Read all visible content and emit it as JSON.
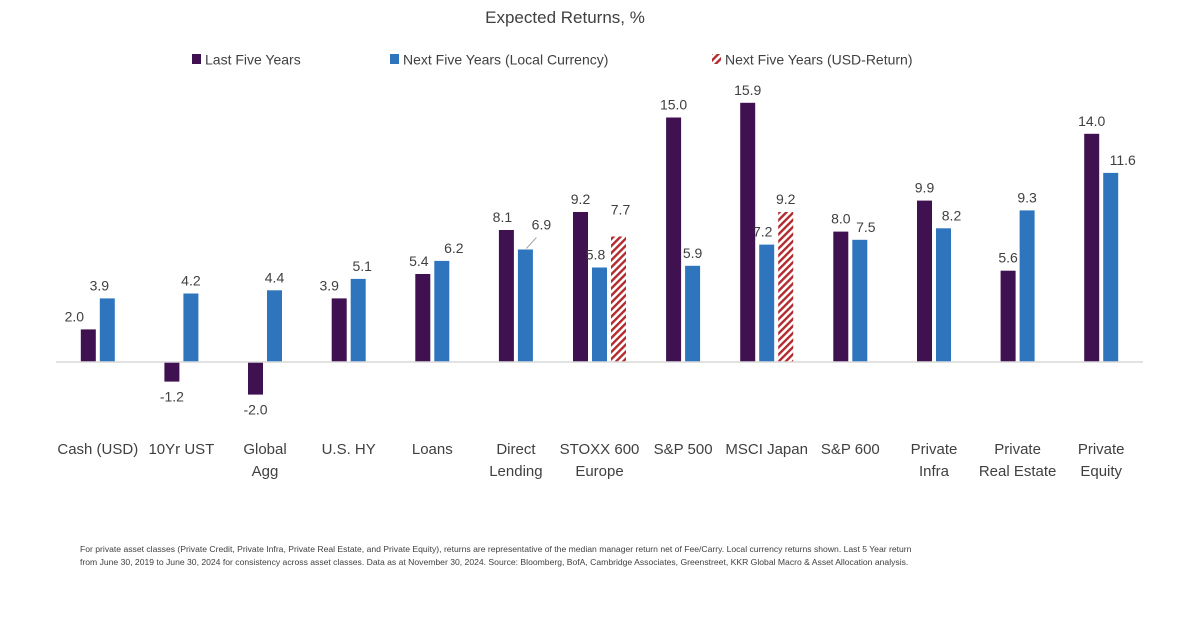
{
  "chart_data": {
    "type": "bar",
    "title": "Expected Returns, %",
    "xlabel": "",
    "ylabel": "",
    "ylim": [
      -2.0,
      16.0
    ],
    "grid": false,
    "legend_position": "top",
    "categories": [
      [
        "Cash (USD)"
      ],
      [
        "10Yr UST"
      ],
      [
        "Global",
        "Agg"
      ],
      [
        "U.S. HY"
      ],
      [
        "Loans"
      ],
      [
        "Direct",
        "Lending"
      ],
      [
        "STOXX 600",
        "Europe"
      ],
      [
        "S&P 500"
      ],
      [
        "MSCI Japan"
      ],
      [
        "S&P 600"
      ],
      [
        "Private",
        "Infra"
      ],
      [
        "Private",
        "Real Estate"
      ],
      [
        "Private",
        "Equity"
      ]
    ],
    "series": [
      {
        "name": "Last Five Years",
        "color": "#3F1151",
        "pattern": "solid",
        "values": [
          2.0,
          -1.2,
          -2.0,
          3.9,
          5.4,
          8.1,
          9.2,
          15.0,
          15.9,
          8.0,
          9.9,
          5.6,
          14.0
        ],
        "labels": [
          "2.0",
          "-1.2",
          "-2.0",
          "3.9",
          "5.4",
          "8.1",
          "9.2",
          "15.0",
          "15.9",
          "8.0",
          "9.9",
          "5.6",
          "14.0"
        ]
      },
      {
        "name": "Next Five Years (Local Currency)",
        "color": "#2E75BE",
        "pattern": "solid",
        "values": [
          3.9,
          4.2,
          4.4,
          5.1,
          6.2,
          6.9,
          5.8,
          5.9,
          7.2,
          7.5,
          8.2,
          9.3,
          11.6
        ],
        "labels": [
          "3.9",
          "4.2",
          "4.4",
          "5.1",
          "6.2",
          "6.9",
          "5.8",
          "5.9",
          "7.2",
          "7.5",
          "8.2",
          "9.3",
          "11.6"
        ]
      },
      {
        "name": "Next Five Years (USD-Return)",
        "color": "#B22A2E",
        "pattern": "diagonal-hatch",
        "values": [
          null,
          null,
          null,
          null,
          null,
          null,
          7.7,
          null,
          9.2,
          null,
          null,
          null,
          null
        ],
        "labels": [
          null,
          null,
          null,
          null,
          null,
          null,
          "7.7",
          null,
          "9.2",
          null,
          null,
          null,
          null
        ]
      }
    ]
  },
  "footnote": {
    "lines": [
      "For private asset classes (Private Credit, Private Infra, Private Real Estate, and Private Equity), returns are representative of the median manager return net of Fee/Carry. Local currency returns shown. Last 5 Year return",
      "from June 30, 2019 to June 30, 2024 for consistency across asset classes. Data as at November 30, 2024. Source: Bloomberg, BofA, Cambridge Associates, Greenstreet, KKR Global Macro & Asset Allocation analysis."
    ]
  }
}
